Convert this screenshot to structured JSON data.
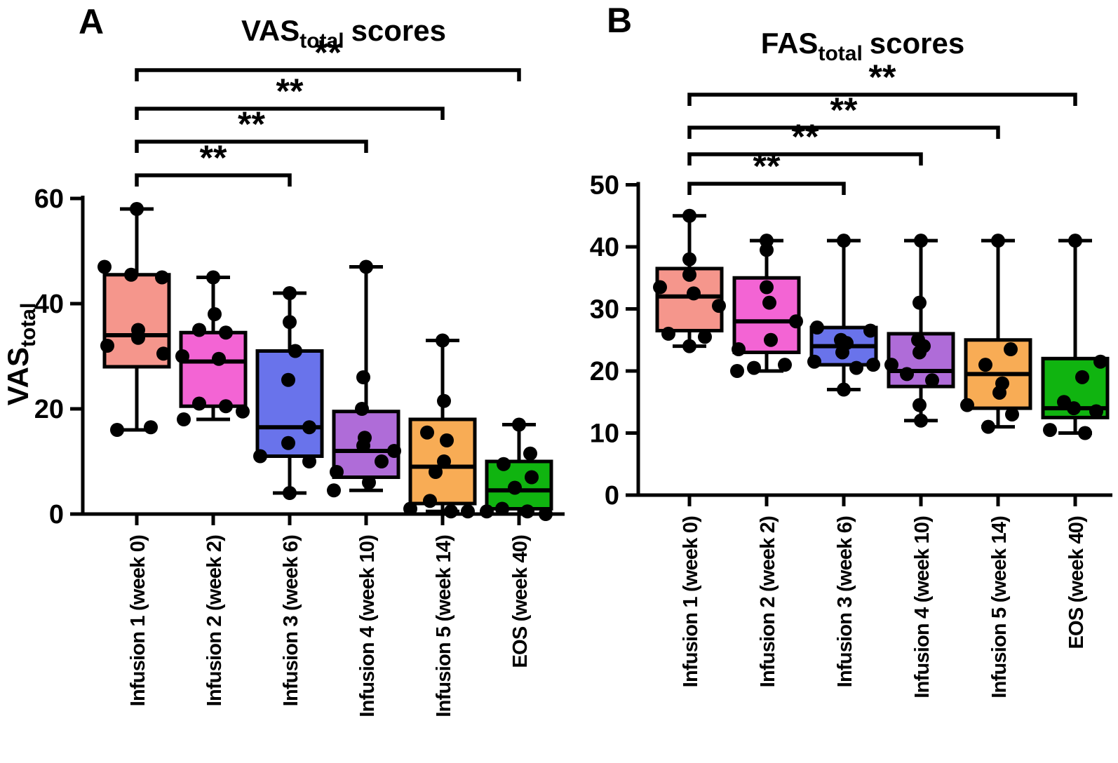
{
  "figure": {
    "panels": [
      {
        "letter": "A",
        "title": {
          "main": "VAS",
          "sub": "total",
          "rest": "scores"
        },
        "y_label": {
          "main": "VAS",
          "sub": "total"
        }
      },
      {
        "letter": "B",
        "title": {
          "main": "FAS",
          "sub": "total",
          "rest": "scores"
        },
        "y_label": null
      }
    ]
  },
  "chart_data": [
    {
      "type": "box",
      "title": "VAS_total scores",
      "ylabel": "VAS_total",
      "ylim": [
        0,
        62
      ],
      "yticks": [
        0,
        20,
        40,
        60
      ],
      "grid": false,
      "legend": false,
      "categories": [
        "Infusion 1 (week 0)",
        "Infusion 2 (week 2)",
        "Infusion 3 (week 6)",
        "Infusion 4 (week 10)",
        "Infusion 5 (week 14)",
        "EOS (week 40)"
      ],
      "colors": [
        "#F5968C",
        "#F364D4",
        "#6973EB",
        "#AF6CD8",
        "#F8AC55",
        "#10B410"
      ],
      "boxes": [
        {
          "category": "Infusion 1 (week 0)",
          "min": 16,
          "q1": 28,
          "median": 34,
          "q3": 45.5,
          "max": 58,
          "points": [
            [
              58,
              0
            ],
            [
              47,
              -46
            ],
            [
              45.5,
              -8
            ],
            [
              45,
              36
            ],
            [
              35,
              2
            ],
            [
              33.5,
              2
            ],
            [
              32,
              -42
            ],
            [
              30.5,
              38
            ],
            [
              16.5,
              20
            ],
            [
              16,
              -28
            ]
          ]
        },
        {
          "category": "Infusion 2 (week 2)",
          "min": 18,
          "q1": 20.5,
          "median": 29,
          "q3": 34.5,
          "max": 45,
          "points": [
            [
              45,
              0
            ],
            [
              38,
              2
            ],
            [
              35,
              -20
            ],
            [
              34.5,
              18
            ],
            [
              30,
              -44
            ],
            [
              29.5,
              8
            ],
            [
              21,
              -20
            ],
            [
              20.5,
              18
            ],
            [
              19.5,
              42
            ],
            [
              18,
              -42
            ]
          ]
        },
        {
          "category": "Infusion 3 (week 6)",
          "min": 4,
          "q1": 11,
          "median": 16.5,
          "q3": 31,
          "max": 42,
          "points": [
            [
              42,
              0
            ],
            [
              36.5,
              0
            ],
            [
              31,
              8
            ],
            [
              25.5,
              -2
            ],
            [
              16.5,
              28
            ],
            [
              13.5,
              -2
            ],
            [
              11,
              -42
            ],
            [
              10,
              28
            ],
            [
              4,
              0
            ]
          ]
        },
        {
          "category": "Infusion 4 (week 10)",
          "min": 4.5,
          "q1": 7,
          "median": 12,
          "q3": 19.5,
          "max": 47,
          "points": [
            [
              47,
              0
            ],
            [
              26,
              -4
            ],
            [
              20,
              -6
            ],
            [
              14.5,
              -2
            ],
            [
              13,
              -4
            ],
            [
              12,
              40
            ],
            [
              10,
              22
            ],
            [
              8,
              -42
            ],
            [
              6,
              4
            ],
            [
              4.5,
              -46
            ]
          ]
        },
        {
          "category": "Infusion 5 (week 14)",
          "min": 0.5,
          "q1": 2,
          "median": 9,
          "q3": 18,
          "max": 33,
          "points": [
            [
              33,
              0
            ],
            [
              21.5,
              2
            ],
            [
              15.5,
              -22
            ],
            [
              14,
              6
            ],
            [
              10,
              2
            ],
            [
              8,
              -10
            ],
            [
              2.5,
              -18
            ],
            [
              1,
              -46
            ],
            [
              0.5,
              12
            ],
            [
              0.5,
              36
            ]
          ]
        },
        {
          "category": "EOS (week 40)",
          "min": 0,
          "q1": 1,
          "median": 4.5,
          "q3": 10,
          "max": 17,
          "points": [
            [
              17,
              0
            ],
            [
              11.5,
              16
            ],
            [
              9.5,
              -22
            ],
            [
              7,
              18
            ],
            [
              5,
              -6
            ],
            [
              1,
              -24
            ],
            [
              0.5,
              -46
            ],
            [
              0.5,
              12
            ],
            [
              0,
              38
            ]
          ]
        }
      ],
      "significance": [
        {
          "from": 0,
          "to": 5,
          "label": "**",
          "y": 100
        },
        {
          "from": 0,
          "to": 4,
          "label": "**",
          "y": 155
        },
        {
          "from": 0,
          "to": 3,
          "label": "**",
          "y": 202
        },
        {
          "from": 0,
          "to": 2,
          "label": "**",
          "y": 250
        }
      ]
    },
    {
      "type": "box",
      "title": "FAS_total scores",
      "ylabel": "",
      "ylim": [
        0,
        50
      ],
      "yticks": [
        0,
        10,
        20,
        30,
        40,
        50
      ],
      "grid": false,
      "legend": false,
      "categories": [
        "Infusion 1 (week 0)",
        "Infusion 2 (week 2)",
        "Infusion 3 (week 6)",
        "Infusion 4 (week 10)",
        "Infusion 5 (week 14)",
        "EOS (week 40)"
      ],
      "colors": [
        "#F5968C",
        "#F364D4",
        "#6973EB",
        "#AF6CD8",
        "#F8AC55",
        "#10B410"
      ],
      "boxes": [
        {
          "category": "Infusion 1 (week 0)",
          "min": 24,
          "q1": 26.5,
          "median": 32,
          "q3": 36.5,
          "max": 45,
          "points": [
            [
              45,
              0
            ],
            [
              38,
              0
            ],
            [
              35.5,
              0
            ],
            [
              33.5,
              -42
            ],
            [
              32.5,
              6
            ],
            [
              30.5,
              42
            ],
            [
              26,
              -30
            ],
            [
              25.5,
              22
            ],
            [
              24,
              0
            ]
          ]
        },
        {
          "category": "Infusion 2 (week 2)",
          "min": 20,
          "q1": 23,
          "median": 28,
          "q3": 35,
          "max": 41,
          "points": [
            [
              41,
              0
            ],
            [
              39.5,
              0
            ],
            [
              33.5,
              0
            ],
            [
              31,
              4
            ],
            [
              28,
              42
            ],
            [
              25,
              6
            ],
            [
              23.5,
              -40
            ],
            [
              21,
              26
            ],
            [
              20.5,
              -18
            ],
            [
              20,
              -42
            ]
          ]
        },
        {
          "category": "Infusion 3 (week 6)",
          "min": 17,
          "q1": 21,
          "median": 24,
          "q3": 27,
          "max": 41,
          "points": [
            [
              41,
              0
            ],
            [
              27,
              -38
            ],
            [
              26.5,
              38
            ],
            [
              25,
              -4
            ],
            [
              24.5,
              4
            ],
            [
              23,
              -2
            ],
            [
              21.5,
              -42
            ],
            [
              21,
              42
            ],
            [
              20.5,
              18
            ],
            [
              17,
              0
            ]
          ]
        },
        {
          "category": "Infusion 4 (week 10)",
          "min": 12,
          "q1": 17.5,
          "median": 20,
          "q3": 26,
          "max": 41,
          "points": [
            [
              41,
              0
            ],
            [
              31,
              -2
            ],
            [
              25,
              -4
            ],
            [
              24,
              4
            ],
            [
              23,
              -2
            ],
            [
              21,
              -42
            ],
            [
              19.5,
              -20
            ],
            [
              18.5,
              16
            ],
            [
              14.5,
              -2
            ],
            [
              12,
              0
            ]
          ]
        },
        {
          "category": "Infusion 5 (week 14)",
          "min": 11,
          "q1": 14,
          "median": 19.5,
          "q3": 25,
          "max": 41,
          "points": [
            [
              41,
              0
            ],
            [
              23.5,
              18
            ],
            [
              21,
              -18
            ],
            [
              18,
              6
            ],
            [
              16.5,
              2
            ],
            [
              14.5,
              -44
            ],
            [
              13,
              20
            ],
            [
              11,
              -14
            ]
          ]
        },
        {
          "category": "EOS (week 40)",
          "min": 10,
          "q1": 12.5,
          "median": 14,
          "q3": 22,
          "max": 41,
          "points": [
            [
              41,
              0
            ],
            [
              21.5,
              36
            ],
            [
              19,
              10
            ],
            [
              15,
              -16
            ],
            [
              14,
              -2
            ],
            [
              13.5,
              30
            ],
            [
              10.5,
              -36
            ],
            [
              10,
              14
            ]
          ]
        }
      ],
      "significance": [
        {
          "from": 0,
          "to": 5,
          "label": "**",
          "y": 135
        },
        {
          "from": 0,
          "to": 4,
          "label": "**",
          "y": 182
        },
        {
          "from": 0,
          "to": 3,
          "label": "**",
          "y": 220
        },
        {
          "from": 0,
          "to": 2,
          "label": "**",
          "y": 262
        }
      ]
    }
  ]
}
